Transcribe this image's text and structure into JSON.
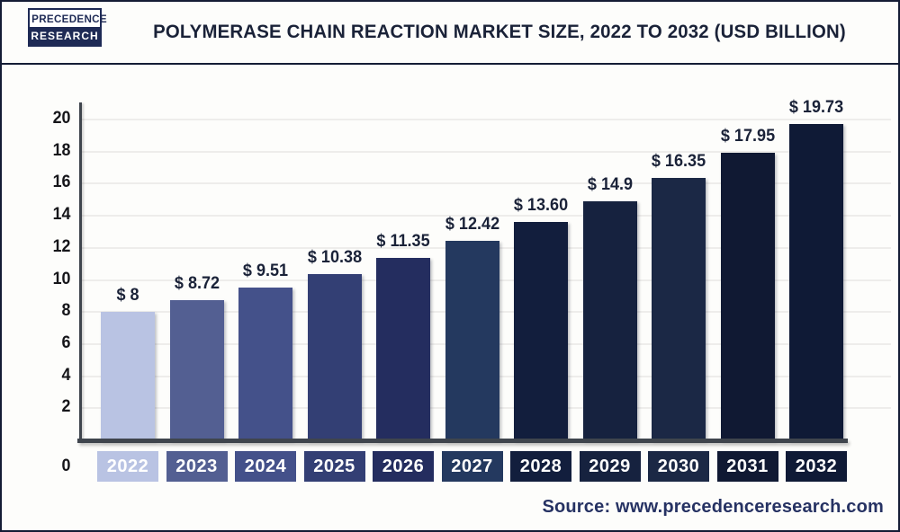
{
  "header": {
    "logo_line1": "PRECEDENCE",
    "logo_line2": "RESEARCH",
    "title": "POLYMERASE CHAIN REACTION MARKET SIZE, 2022 TO 2032 (USD BILLION)"
  },
  "chart_data": {
    "type": "bar",
    "title": "Polymerase Chain Reaction Market Size, 2022 to 2032 (USD Billion)",
    "categories": [
      "2022",
      "2023",
      "2024",
      "2025",
      "2026",
      "2027",
      "2028",
      "2029",
      "2030",
      "2031",
      "2032"
    ],
    "values": [
      8,
      8.72,
      9.51,
      10.38,
      11.35,
      12.42,
      13.6,
      14.9,
      16.35,
      17.95,
      19.73
    ],
    "value_labels": [
      "$ 8",
      "$ 8.72",
      "$ 9.51",
      "$ 10.38",
      "$ 11.35",
      "$ 12.42",
      "$ 13.60",
      "$ 14.9",
      "$ 16.35",
      "$ 17.95",
      "$ 19.73"
    ],
    "bar_colors": [
      "#b9c3e3",
      "#535f92",
      "#44518a",
      "#333f74",
      "#242d5f",
      "#24395f",
      "#121e3d",
      "#16223f",
      "#1b2845",
      "#101933",
      "#0f1a36"
    ],
    "ylim": [
      0,
      20
    ],
    "yticks": [
      0,
      2,
      4,
      6,
      8,
      10,
      12,
      14,
      16,
      18,
      20
    ],
    "grid": true,
    "legend": "none",
    "xlabel": "",
    "ylabel": ""
  },
  "footer": {
    "source": "Source: www.precedenceresearch.com"
  },
  "colors": {
    "title_navy": "#1a2238",
    "logo_navy": "#1e2a55",
    "background": "#fdfdfb",
    "grid": "#eeedeb",
    "axis": "#3f454d",
    "year_label_text": "#ffffff"
  }
}
